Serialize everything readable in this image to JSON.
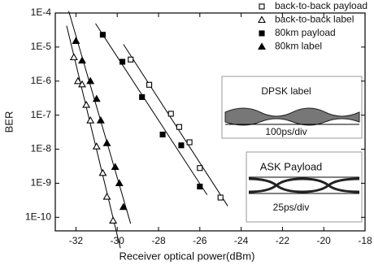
{
  "chart_data": {
    "type": "scatter",
    "xlabel": "Receiver optical power(dBm)",
    "ylabel": "BER",
    "xlim": [
      -33,
      -18
    ],
    "xticks": [
      -32,
      -30,
      -28,
      -26,
      -24,
      -22,
      -20,
      -18
    ],
    "ylim": [
      0.0001,
      4e-11
    ],
    "yscale": "log",
    "yticks": [
      {
        "value": 0.0001,
        "label": "1E-4"
      },
      {
        "value": 1e-05,
        "label": "1E-5"
      },
      {
        "value": 1e-06,
        "label": "1E-6"
      },
      {
        "value": 1e-07,
        "label": "1E-7"
      },
      {
        "value": 1e-08,
        "label": "1E-8"
      },
      {
        "value": 1e-09,
        "label": "1E-9"
      },
      {
        "value": 1e-10,
        "label": "1E-10"
      }
    ],
    "legend": "upper right",
    "series": [
      {
        "name": "back-to-back payload",
        "marker": "square-open",
        "color": "#000",
        "x": [
          -29.35,
          -28.45,
          -27.4,
          -27.0,
          -26.5,
          -26.0,
          -25.0
        ],
        "values": [
          4.3e-06,
          7.8e-07,
          1.1e-07,
          4.5e-08,
          1.6e-08,
          2.8e-09,
          3.8e-10
        ]
      },
      {
        "name": "back-to-back label",
        "marker": "triangle-open",
        "color": "#000",
        "x": [
          -32.1,
          -31.9,
          -31.7,
          -31.5,
          -31.3,
          -31.0,
          -30.7,
          -30.5,
          -30.2
        ],
        "values": [
          5e-06,
          1e-06,
          8e-07,
          2e-07,
          7e-08,
          1.2e-08,
          2e-09,
          4e-10,
          8e-11
        ]
      },
      {
        "name": "80km payload",
        "marker": "square",
        "color": "#000",
        "x": [
          -30.7,
          -29.75,
          -28.8,
          -27.8,
          -26.9,
          -26.0
        ],
        "values": [
          2.3e-05,
          3.7e-06,
          3.4e-07,
          2.7e-08,
          1.3e-08,
          8e-10
        ]
      },
      {
        "name": "80km label",
        "marker": "triangle",
        "color": "#000",
        "x": [
          -32.0,
          -31.7,
          -31.3,
          -31.0,
          -30.8,
          -30.5,
          -30.1,
          -29.9,
          -29.7
        ],
        "values": [
          1.5e-05,
          4e-06,
          1e-06,
          3e-07,
          7e-08,
          1.5e-08,
          3e-09,
          1e-09,
          2e-10
        ]
      }
    ],
    "insets": [
      {
        "title": "DPSK label",
        "scale": "100ps/div"
      },
      {
        "title": "ASK Payload",
        "scale": "25ps/div"
      }
    ]
  }
}
